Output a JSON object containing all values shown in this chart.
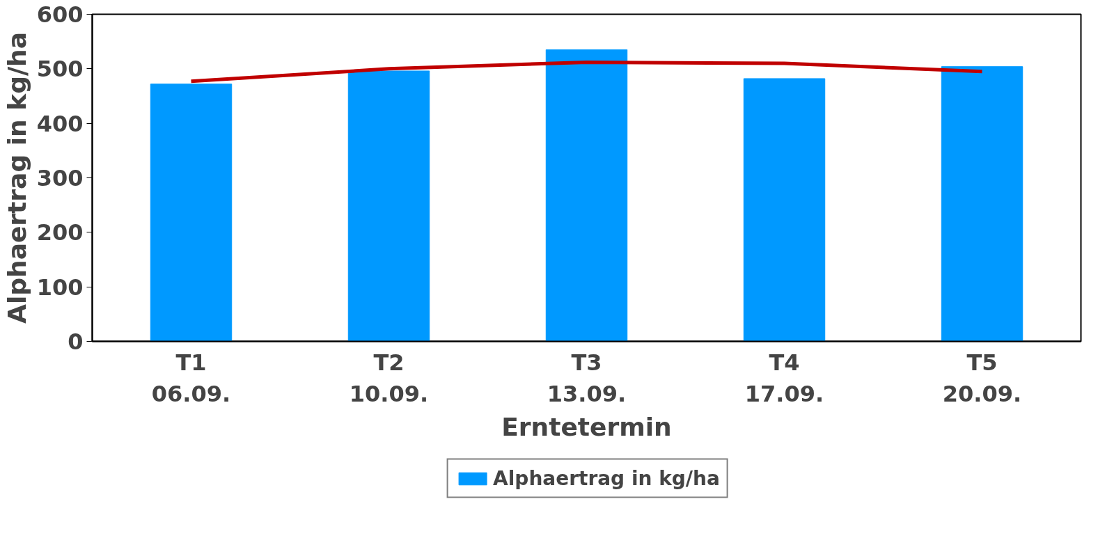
{
  "chart_data": {
    "type": "bar",
    "xlabel": "Erntetermin",
    "ylabel": "Alphaertrag in kg/ha",
    "categories": [
      "T1\n06.09.",
      "T2\n10.09.",
      "T3\n13.09.",
      "T4\n17.09.",
      "T5\n20.09."
    ],
    "series": [
      {
        "name": "Alphaertrag in kg/ha",
        "color": "#0099ff",
        "values": [
          472,
          496,
          535,
          482,
          504
        ]
      },
      {
        "type": "line",
        "color": "#c00000",
        "values": [
          477,
          500,
          512,
          510,
          495
        ]
      }
    ],
    "ylim": [
      0,
      600
    ],
    "yticks": [
      0,
      100,
      200,
      300,
      400,
      500,
      600
    ],
    "grid": false,
    "legend": "bottom"
  }
}
